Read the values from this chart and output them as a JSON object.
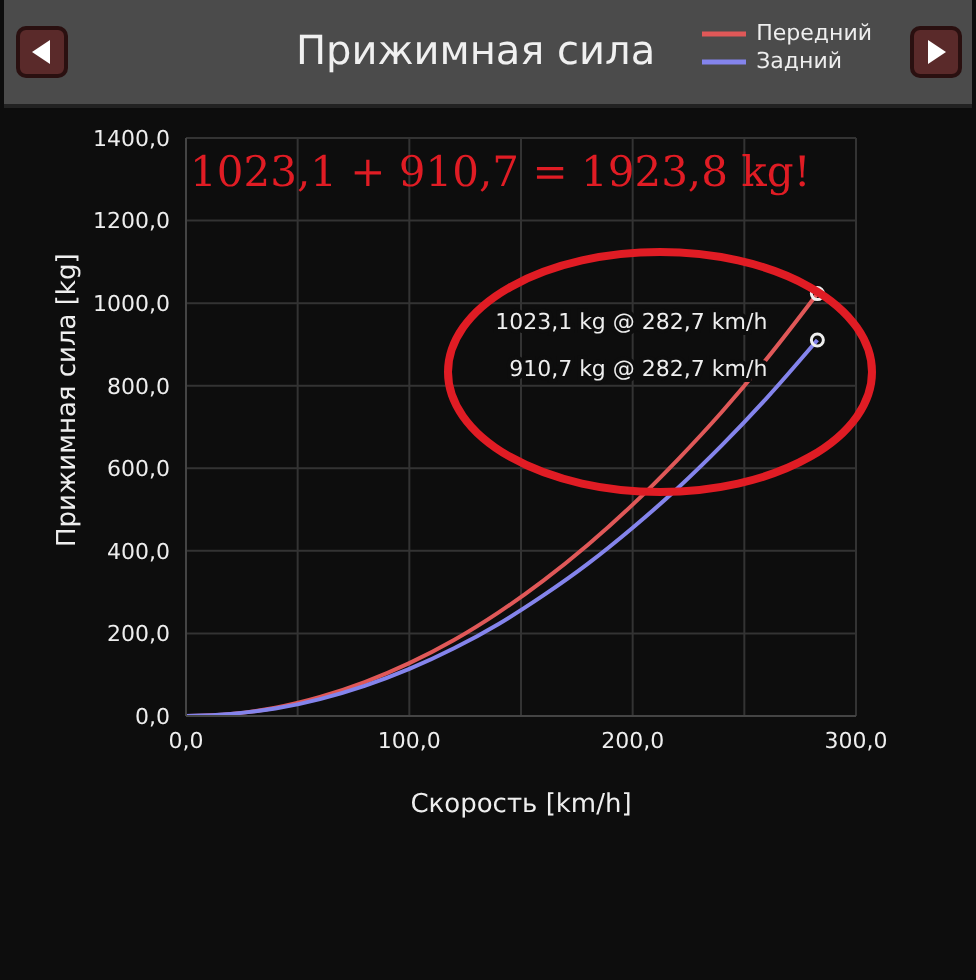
{
  "chart_data": {
    "type": "line",
    "title": "Прижимная сила",
    "xlabel": "Скорость [km/h]",
    "ylabel": "Прижимная сила [kg]",
    "x": [
      0,
      20,
      40,
      60,
      80,
      100,
      120,
      140,
      160,
      180,
      200,
      220,
      240,
      260,
      282.7
    ],
    "series": [
      {
        "name": "Передний",
        "color": "#e05858",
        "values": [
          0,
          5,
          20,
          46,
          82,
          128,
          184,
          251,
          328,
          415,
          512,
          620,
          737,
          865,
          1023.1
        ]
      },
      {
        "name": "Задний",
        "color": "#8484ec",
        "values": [
          0,
          5,
          18,
          41,
          73,
          114,
          164,
          223,
          292,
          369,
          456,
          551,
          656,
          770,
          910.7
        ]
      }
    ],
    "xlim": [
      0,
      300
    ],
    "xticks": [
      {
        "value": 0,
        "label": "0,0"
      },
      {
        "value": 50,
        "label": null
      },
      {
        "value": 100,
        "label": "100,0"
      },
      {
        "value": 150,
        "label": null
      },
      {
        "value": 200,
        "label": "200,0"
      },
      {
        "value": 250,
        "label": null
      },
      {
        "value": 300,
        "label": "300,0"
      }
    ],
    "ylim": [
      0,
      1400
    ],
    "yticks": [
      {
        "value": 0,
        "label": "0,0"
      },
      {
        "value": 200,
        "label": "200,0"
      },
      {
        "value": 400,
        "label": "400,0"
      },
      {
        "value": 600,
        "label": "600,0"
      },
      {
        "value": 800,
        "label": "800,0"
      },
      {
        "value": 1000,
        "label": "1000,0"
      },
      {
        "value": 1200,
        "label": "1200,0"
      },
      {
        "value": 1400,
        "label": "1400,0"
      }
    ],
    "grid": true,
    "legend": "top right",
    "line_style": "solid",
    "annotations": [
      "1023,1 + 910,7 = 1923,8 kg!",
      {
        "text": "1023,1 kg @ 282,7 km/h",
        "x": 282.7,
        "y": 1023.1
      },
      {
        "text": "910,7 kg @ 282,7 km/h",
        "x": 282.7,
        "y": 910.7
      }
    ]
  }
}
